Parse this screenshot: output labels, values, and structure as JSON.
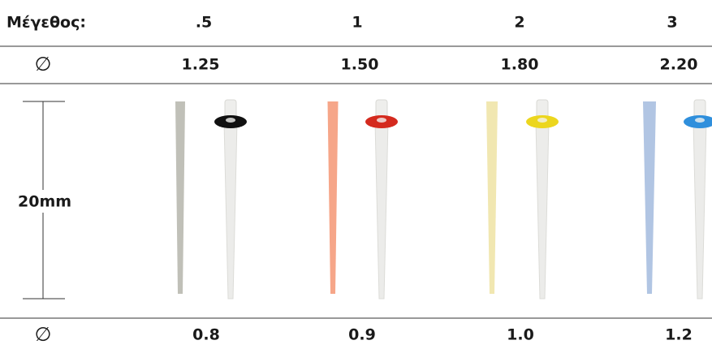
{
  "header": {
    "label": "Μέγεθος:",
    "sizes": [
      ".5",
      "1",
      "2",
      "3"
    ]
  },
  "top_row": {
    "symbol": "∅",
    "values": [
      "1.25",
      "1.50",
      "1.80",
      "2.20"
    ]
  },
  "length_label": "20mm",
  "bottom_row": {
    "symbol": "∅",
    "values": [
      "0.8",
      "0.9",
      "1.0",
      "1.2"
    ]
  }
}
